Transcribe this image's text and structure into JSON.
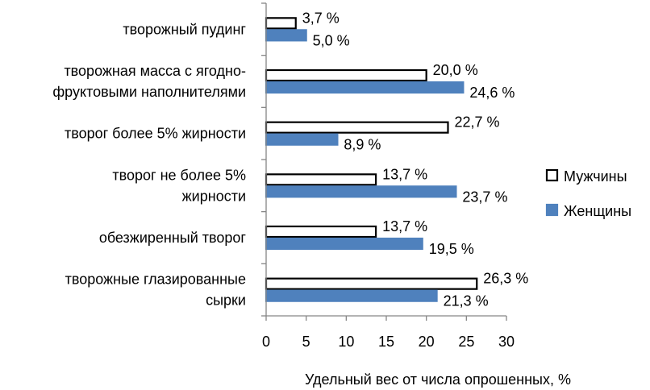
{
  "chart_data": {
    "type": "bar",
    "orientation": "horizontal",
    "categories": [
      [
        "творожный пудинг"
      ],
      [
        "творожная масса с ягодно-",
        "фруктовыми наполнителями"
      ],
      [
        "творог более 5% жирности"
      ],
      [
        "творог не более 5%",
        "жирности"
      ],
      [
        "обезжиренный творог"
      ],
      [
        "творожные глазированные",
        "сырки"
      ]
    ],
    "series": [
      {
        "name": "Мужчины",
        "color": "#ffffff",
        "stroke": "#000000",
        "values": [
          3.7,
          20.0,
          22.7,
          13.7,
          13.7,
          26.3
        ],
        "labels": [
          "3,7 %",
          "20,0 %",
          "22,7 %",
          "13,7 %",
          "13,7 %",
          "26,3 %"
        ]
      },
      {
        "name": "Женщины",
        "color": "#4f81bd",
        "stroke": "#4f81bd",
        "values": [
          5.0,
          24.6,
          8.9,
          23.7,
          19.5,
          21.3
        ],
        "labels": [
          "5,0 %",
          "24,6 %",
          "8,9 %",
          "23,7  %",
          "19,5 %",
          "21,3 %"
        ]
      }
    ],
    "xlabel": "Удельный вес от числа опрошенных, %",
    "ylabel": "",
    "xlim": [
      0,
      30
    ],
    "xticks": [
      "0",
      "5",
      "10",
      "15",
      "20",
      "25",
      "30"
    ],
    "grid": false,
    "legend_position": "right"
  }
}
